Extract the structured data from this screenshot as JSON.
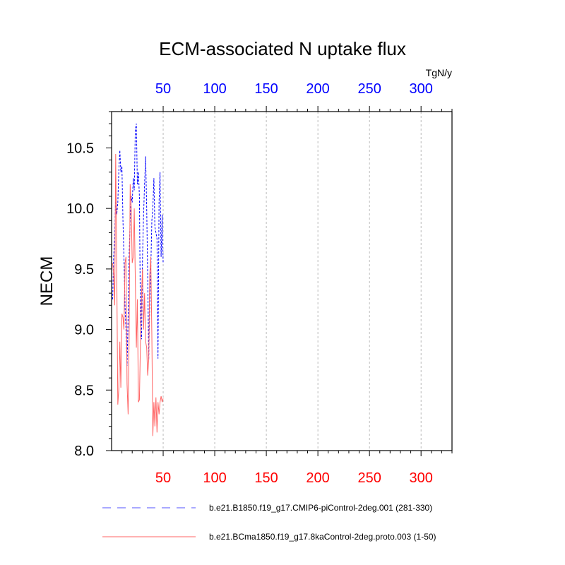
{
  "chart_data": {
    "type": "line",
    "title": "ECM-associated N uptake flux",
    "units": "TgN/y",
    "ylabel": "NECM",
    "xlabel": "",
    "xlim": [
      0,
      330
    ],
    "ylim": [
      8.0,
      10.8
    ],
    "grid": "x-dashed",
    "x_ticks": [
      50,
      100,
      150,
      200,
      250,
      300
    ],
    "y_ticks": [
      8.0,
      8.5,
      9.0,
      9.5,
      10.0,
      10.5
    ],
    "y_tick_labels": [
      "8.0",
      "8.5",
      "9.0",
      "9.5",
      "10.0",
      "10.5"
    ],
    "top_axis_color": "#0000ff",
    "bottom_axis_color": "#ff0000",
    "x": [
      1,
      2,
      3,
      4,
      5,
      6,
      7,
      8,
      9,
      10,
      11,
      12,
      13,
      14,
      15,
      16,
      17,
      18,
      19,
      20,
      21,
      22,
      23,
      24,
      25,
      26,
      27,
      28,
      29,
      30,
      31,
      32,
      33,
      34,
      35,
      36,
      37,
      38,
      39,
      40,
      41,
      42,
      43,
      44,
      45,
      46,
      47,
      48,
      49,
      50
    ],
    "series": [
      {
        "name": "b.e21.B1850.f19_g17.CMIP6-piControl-2deg.001 (281-330)",
        "color": "#0000ff",
        "style": "dashed",
        "values": [
          9.25,
          9.6,
          9.75,
          10.12,
          9.95,
          10.05,
          10.3,
          10.48,
          10.3,
          10.35,
          9.9,
          9.6,
          9.2,
          9.0,
          8.7,
          9.1,
          9.6,
          9.9,
          10.1,
          10.05,
          10.25,
          10.15,
          10.65,
          10.7,
          10.2,
          10.3,
          10.1,
          9.05,
          8.92,
          9.6,
          9.95,
          10.2,
          10.43,
          10.0,
          9.45,
          8.75,
          9.2,
          9.5,
          9.9,
          10.0,
          10.25,
          9.85,
          9.8,
          9.75,
          8.76,
          10.05,
          10.3,
          9.6,
          9.95,
          9.55
        ]
      },
      {
        "name": "b.e21.BCma1850.f19_g17.8kaControl-2deg.proto.003 (1-50)",
        "color": "#ff6464",
        "style": "solid",
        "values": [
          9.55,
          9.45,
          9.2,
          10.45,
          9.5,
          8.38,
          8.5,
          8.9,
          8.52,
          9.13,
          9.1,
          9.0,
          9.55,
          9.6,
          8.55,
          8.3,
          8.92,
          10.2,
          10.0,
          9.55,
          9.6,
          10.0,
          9.4,
          8.85,
          9.25,
          8.4,
          8.42,
          8.9,
          9.3,
          9.5,
          9.0,
          9.3,
          8.9,
          8.85,
          8.62,
          8.75,
          9.45,
          9.6,
          8.95,
          8.12,
          8.4,
          8.2,
          8.44,
          8.15,
          8.4,
          8.3,
          8.4,
          8.45,
          8.4,
          8.43
        ]
      }
    ],
    "legend": "bottom"
  }
}
